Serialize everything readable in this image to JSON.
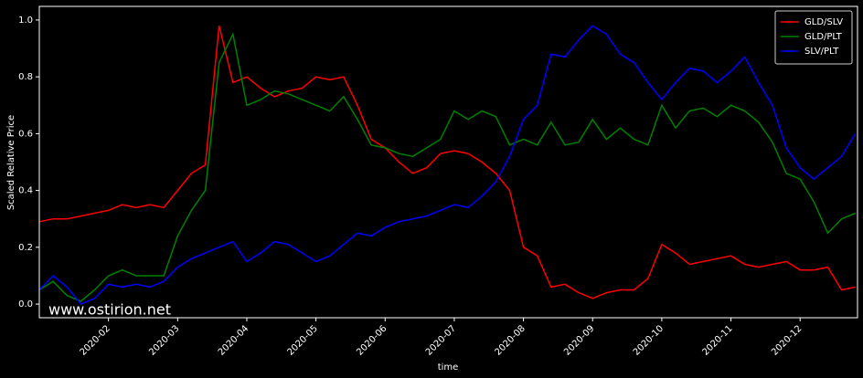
{
  "chart_data": {
    "type": "line",
    "watermark": "www.ostirion.net",
    "xlabel": "time",
    "ylabel": "Scaled Relative Price",
    "x": [
      1.0,
      1.2,
      1.4,
      1.6,
      1.8,
      2.0,
      2.2,
      2.4,
      2.6,
      2.8,
      3.0,
      3.2,
      3.4,
      3.6,
      3.8,
      4.0,
      4.2,
      4.4,
      4.6,
      4.8,
      5.0,
      5.2,
      5.4,
      5.6,
      5.8,
      6.0,
      6.2,
      6.4,
      6.6,
      6.8,
      7.0,
      7.2,
      7.4,
      7.6,
      7.8,
      8.0,
      8.2,
      8.4,
      8.6,
      8.8,
      9.0,
      9.2,
      9.4,
      9.6,
      9.8,
      10.0,
      10.2,
      10.4,
      10.6,
      10.8,
      11.0,
      11.2,
      11.4,
      11.6,
      11.8,
      12.0,
      12.2,
      12.4,
      12.6,
      12.8
    ],
    "series": [
      {
        "name": "GLD/SLV",
        "color": "#ff0000",
        "values": [
          0.29,
          0.3,
          0.3,
          0.31,
          0.32,
          0.33,
          0.35,
          0.34,
          0.35,
          0.34,
          0.4,
          0.46,
          0.49,
          0.98,
          0.78,
          0.8,
          0.76,
          0.73,
          0.75,
          0.76,
          0.8,
          0.79,
          0.8,
          0.7,
          0.58,
          0.55,
          0.5,
          0.46,
          0.48,
          0.53,
          0.54,
          0.53,
          0.5,
          0.46,
          0.4,
          0.2,
          0.17,
          0.06,
          0.07,
          0.04,
          0.02,
          0.04,
          0.05,
          0.05,
          0.09,
          0.21,
          0.18,
          0.14,
          0.15,
          0.16,
          0.17,
          0.14,
          0.13,
          0.14,
          0.15,
          0.12,
          0.12,
          0.13,
          0.05,
          0.06
        ]
      },
      {
        "name": "GLD/PLT",
        "color": "#008000",
        "values": [
          0.05,
          0.08,
          0.03,
          0.01,
          0.05,
          0.1,
          0.12,
          0.1,
          0.1,
          0.1,
          0.24,
          0.33,
          0.4,
          0.85,
          0.95,
          0.7,
          0.72,
          0.75,
          0.74,
          0.72,
          0.7,
          0.68,
          0.73,
          0.65,
          0.56,
          0.55,
          0.53,
          0.52,
          0.55,
          0.58,
          0.68,
          0.65,
          0.68,
          0.66,
          0.56,
          0.58,
          0.56,
          0.64,
          0.56,
          0.57,
          0.65,
          0.58,
          0.62,
          0.58,
          0.56,
          0.7,
          0.62,
          0.68,
          0.69,
          0.66,
          0.7,
          0.68,
          0.64,
          0.57,
          0.46,
          0.44,
          0.36,
          0.25,
          0.3,
          0.32
        ]
      },
      {
        "name": "SLV/PLT",
        "color": "#0000ff",
        "values": [
          0.05,
          0.1,
          0.06,
          0.0,
          0.02,
          0.07,
          0.06,
          0.07,
          0.06,
          0.08,
          0.13,
          0.16,
          0.18,
          0.2,
          0.22,
          0.15,
          0.18,
          0.22,
          0.21,
          0.18,
          0.15,
          0.17,
          0.21,
          0.25,
          0.24,
          0.27,
          0.29,
          0.3,
          0.31,
          0.33,
          0.35,
          0.34,
          0.38,
          0.43,
          0.52,
          0.65,
          0.7,
          0.88,
          0.87,
          0.93,
          0.98,
          0.95,
          0.88,
          0.85,
          0.78,
          0.72,
          0.78,
          0.83,
          0.82,
          0.78,
          0.82,
          0.87,
          0.78,
          0.7,
          0.55,
          0.48,
          0.44,
          0.48,
          0.52,
          0.6
        ]
      }
    ],
    "xlim": [
      1.0,
      12.83
    ],
    "xticks": [
      {
        "value": 2,
        "label": "2020-02"
      },
      {
        "value": 3,
        "label": "2020-03"
      },
      {
        "value": 4,
        "label": "2020-04"
      },
      {
        "value": 5,
        "label": "2020-05"
      },
      {
        "value": 6,
        "label": "2020-06"
      },
      {
        "value": 7,
        "label": "2020-07"
      },
      {
        "value": 8,
        "label": "2020-08"
      },
      {
        "value": 9,
        "label": "2020-09"
      },
      {
        "value": 10,
        "label": "2020-10"
      },
      {
        "value": 11,
        "label": "2020-11"
      },
      {
        "value": 12,
        "label": "2020-12"
      }
    ],
    "ylim": [
      -0.048,
      1.048
    ],
    "yticks": [
      {
        "value": 0,
        "label": "0.0"
      },
      0.2,
      0.4,
      0.6,
      0.8,
      {
        "value": 1,
        "label": "1.0"
      }
    ],
    "legend": "upper right"
  }
}
